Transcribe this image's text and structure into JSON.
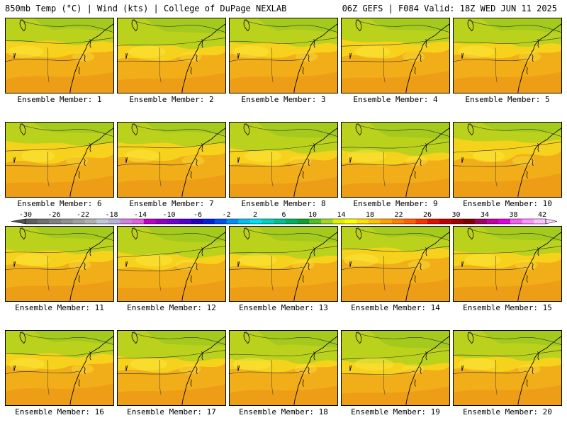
{
  "header": {
    "left": "850mb Temp (°C) | Wind (kts) | College of DuPage NEXLAB",
    "right": "06Z GEFS | F084 Valid: 18Z WED JUN 11 2025"
  },
  "caption_prefix": "Ensemble Member:",
  "members": [
    {
      "label": "Ensemble Member: 1",
      "green": 0.35,
      "orange": 0.45
    },
    {
      "label": "Ensemble Member: 2",
      "green": 0.45,
      "orange": 0.4
    },
    {
      "label": "Ensemble Member: 3",
      "green": 0.4,
      "orange": 0.45
    },
    {
      "label": "Ensemble Member: 4",
      "green": 0.3,
      "orange": 0.55
    },
    {
      "label": "Ensemble Member: 5",
      "green": 0.4,
      "orange": 0.45
    },
    {
      "label": "Ensemble Member: 6",
      "green": 0.2,
      "orange": 0.5
    },
    {
      "label": "Ensemble Member: 7",
      "green": 0.25,
      "orange": 0.55
    },
    {
      "label": "Ensemble Member: 8",
      "green": 0.45,
      "orange": 0.4
    },
    {
      "label": "Ensemble Member: 9",
      "green": 0.55,
      "orange": 0.3
    },
    {
      "label": "Ensemble Member: 10",
      "green": 0.1,
      "orange": 0.65
    },
    {
      "label": "Ensemble Member: 11",
      "green": 0.35,
      "orange": 0.45
    },
    {
      "label": "Ensemble Member: 12",
      "green": 0.45,
      "orange": 0.45
    },
    {
      "label": "Ensemble Member: 13",
      "green": 0.5,
      "orange": 0.4
    },
    {
      "label": "Ensemble Member: 14",
      "green": 0.3,
      "orange": 0.55
    },
    {
      "label": "Ensemble Member: 15",
      "green": 0.4,
      "orange": 0.45
    },
    {
      "label": "Ensemble Member: 16",
      "green": 0.35,
      "orange": 0.5
    },
    {
      "label": "Ensemble Member: 17",
      "green": 0.45,
      "orange": 0.45
    },
    {
      "label": "Ensemble Member: 18",
      "green": 0.55,
      "orange": 0.35
    },
    {
      "label": "Ensemble Member: 19",
      "green": 0.6,
      "orange": 0.3
    },
    {
      "label": "Ensemble Member: 20",
      "green": 0.45,
      "orange": 0.4
    }
  ],
  "colorbar": {
    "ticks": [
      "-30",
      "-26",
      "-22",
      "-18",
      "-14",
      "-10",
      "-6",
      "-2",
      "2",
      "6",
      "10",
      "14",
      "18",
      "22",
      "26",
      "30",
      "34",
      "38",
      "42"
    ],
    "colors": [
      "#5f5f5f",
      "#707070",
      "#808080",
      "#909090",
      "#a0a0a0",
      "#b0b0b0",
      "#c0c8d8",
      "#b8b0d8",
      "#d080e0",
      "#e060e0",
      "#c000c0",
      "#9000c0",
      "#7000d0",
      "#5000d0",
      "#2000c0",
      "#0020e0",
      "#0050f0",
      "#0090f0",
      "#00c0f0",
      "#00e0f0",
      "#00d0c0",
      "#00c090",
      "#00b060",
      "#10a030",
      "#50c020",
      "#a0d820",
      "#e0f000",
      "#ffff00",
      "#ffe000",
      "#ffc000",
      "#ffa000",
      "#ff8000",
      "#ff6000",
      "#ff3000",
      "#e01000",
      "#c00000",
      "#a00000",
      "#800000",
      "#a00060",
      "#c000a0",
      "#e000e0",
      "#f060f0",
      "#ff90ff",
      "#ffc0ff"
    ]
  }
}
